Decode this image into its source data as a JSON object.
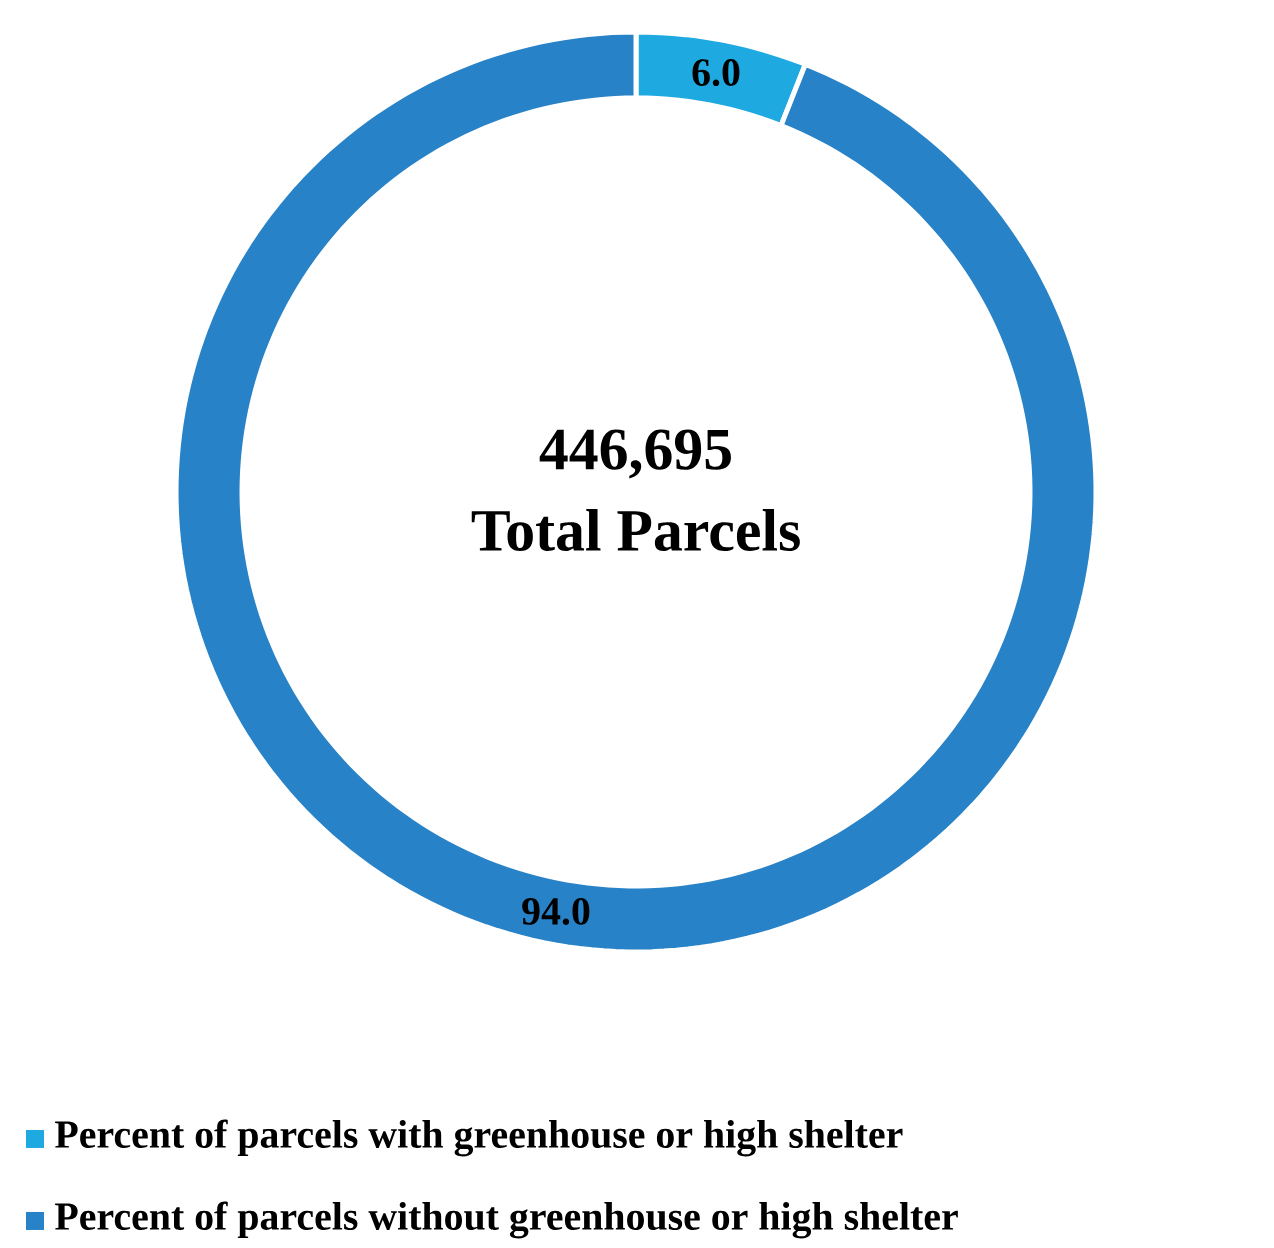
{
  "chart_data": {
    "type": "donut",
    "categories": [
      "Percent of parcels with greenhouse or high shelter",
      "Percent of parcels without greenhouse or high shelter"
    ],
    "values": [
      6.0,
      94.0
    ],
    "colors": [
      "#1fa9e1",
      "#2882c7"
    ],
    "value_labels": [
      "6.0",
      "94.0"
    ],
    "annotations": [
      "446,695",
      "Total Parcels"
    ],
    "legend": "bottom"
  }
}
